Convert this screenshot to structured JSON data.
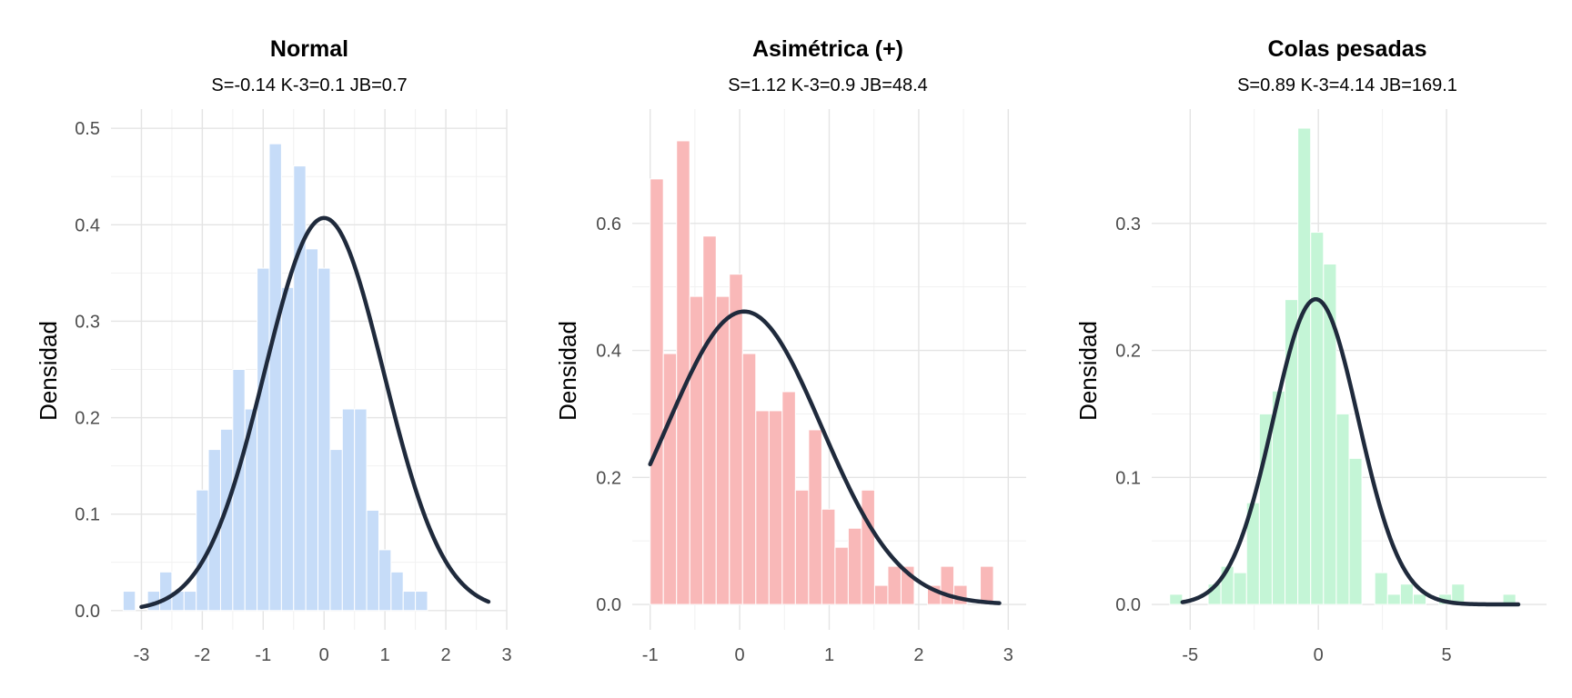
{
  "chart_data": [
    {
      "type": "bar",
      "title": "Normal",
      "subtitle": "S=-0.14  K-3=0.1  JB=0.7",
      "ylabel": "Densidad",
      "xlabel": "",
      "color": "#c6dcf8",
      "xlim": [
        -3.5,
        3.0
      ],
      "ylim": [
        -0.02,
        0.52
      ],
      "xticks": [
        -3,
        -2,
        -1,
        0,
        1,
        2,
        3
      ],
      "yticks": [
        0.0,
        0.1,
        0.2,
        0.3,
        0.4,
        0.5
      ],
      "ytick_labels": [
        "0.0",
        "0.1",
        "0.2",
        "0.3",
        "0.4",
        "0.5"
      ],
      "grid": true,
      "bins": {
        "start": -3.3,
        "width": 0.2,
        "values": [
          0.02,
          0.0,
          0.02,
          0.04,
          0.02,
          0.02,
          0.125,
          0.167,
          0.188,
          0.25,
          0.209,
          0.355,
          0.484,
          0.335,
          0.461,
          0.375,
          0.355,
          0.167,
          0.209,
          0.209,
          0.104,
          0.063,
          0.04,
          0.02,
          0.02
        ]
      },
      "density_curve": {
        "type": "normal",
        "mean": 0.0,
        "sd": 0.98,
        "x_range": [
          -3.0,
          2.7
        ]
      }
    },
    {
      "type": "bar",
      "title": "Asimétrica (+)",
      "subtitle": "S=1.12  K-3=0.9  JB=48.4",
      "ylabel": "Densidad",
      "xlabel": "",
      "color": "#f9b8b8",
      "xlim": [
        -1.2,
        3.2
      ],
      "ylim": [
        -0.04,
        0.78
      ],
      "xticks": [
        -1,
        0,
        1,
        2,
        3
      ],
      "yticks": [
        0.0,
        0.2,
        0.4,
        0.6
      ],
      "ytick_labels": [
        "0.0",
        "0.2",
        "0.4",
        "0.6"
      ],
      "grid": true,
      "bins": {
        "start": -1.0,
        "width": 0.1475,
        "values": [
          0.67,
          0.395,
          0.73,
          0.485,
          0.58,
          0.485,
          0.52,
          0.395,
          0.305,
          0.305,
          0.335,
          0.18,
          0.275,
          0.15,
          0.09,
          0.12,
          0.18,
          0.03,
          0.06,
          0.06,
          0.0,
          0.03,
          0.06,
          0.03,
          0.0,
          0.06
        ]
      },
      "density_curve": {
        "type": "normal",
        "mean": 0.05,
        "sd": 0.865,
        "x_range": [
          -1.0,
          2.9
        ]
      }
    },
    {
      "type": "bar",
      "title": "Colas pesadas",
      "subtitle": "S=0.89  K-3=4.14  JB=169.1",
      "ylabel": "Densidad",
      "xlabel": "",
      "color": "#c4f5d6",
      "xlim": [
        -6.5,
        8.9
      ],
      "ylim": [
        -0.02,
        0.39
      ],
      "xticks": [
        -5,
        0,
        5
      ],
      "yticks": [
        0.0,
        0.1,
        0.2,
        0.3
      ],
      "ytick_labels": [
        "0.0",
        "0.1",
        "0.2",
        "0.3"
      ],
      "grid": true,
      "bins": {
        "start": -5.8,
        "width": 0.5,
        "values": [
          0.008,
          0.0,
          0.0,
          0.016,
          0.03,
          0.025,
          0.08,
          0.15,
          0.168,
          0.24,
          0.375,
          0.293,
          0.268,
          0.15,
          0.115,
          0.0,
          0.025,
          0.008,
          0.016,
          0.008,
          0.0,
          0.008,
          0.016,
          0.0,
          0.0,
          0.0,
          0.008
        ]
      },
      "density_curve": {
        "type": "normal",
        "mean": -0.1,
        "sd": 1.66,
        "x_range": [
          -5.3,
          7.8
        ]
      }
    }
  ],
  "colors": {
    "curve": "#1f2a3c",
    "grid": "#e4e4e4",
    "background": "#ffffff"
  }
}
